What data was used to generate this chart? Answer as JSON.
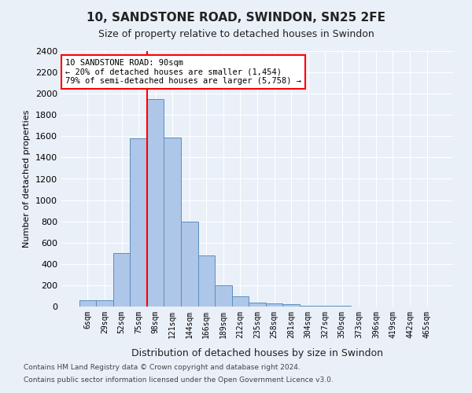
{
  "title": "10, SANDSTONE ROAD, SWINDON, SN25 2FE",
  "subtitle": "Size of property relative to detached houses in Swindon",
  "xlabel": "Distribution of detached houses by size in Swindon",
  "ylabel": "Number of detached properties",
  "categories": [
    "6sqm",
    "29sqm",
    "52sqm",
    "75sqm",
    "98sqm",
    "121sqm",
    "144sqm",
    "166sqm",
    "189sqm",
    "212sqm",
    "235sqm",
    "258sqm",
    "281sqm",
    "304sqm",
    "327sqm",
    "350sqm",
    "373sqm",
    "396sqm",
    "419sqm",
    "442sqm",
    "465sqm"
  ],
  "values": [
    60,
    60,
    500,
    1580,
    1950,
    1590,
    800,
    480,
    200,
    95,
    35,
    28,
    20,
    10,
    5,
    5,
    0,
    0,
    0,
    0,
    0
  ],
  "bar_color": "#aec6e8",
  "bar_edge_color": "#5a8fc0",
  "ylim": [
    0,
    2400
  ],
  "yticks": [
    0,
    200,
    400,
    600,
    800,
    1000,
    1200,
    1400,
    1600,
    1800,
    2000,
    2200,
    2400
  ],
  "red_line_x": 3.5,
  "annotation_line1": "10 SANDSTONE ROAD: 90sqm",
  "annotation_line2": "← 20% of detached houses are smaller (1,454)",
  "annotation_line3": "79% of semi-detached houses are larger (5,758) →",
  "footer1": "Contains HM Land Registry data © Crown copyright and database right 2024.",
  "footer2": "Contains public sector information licensed under the Open Government Licence v3.0.",
  "bg_color": "#eaf0f8",
  "plot_bg_color": "#eaf0f8",
  "grid_color": "#ffffff"
}
